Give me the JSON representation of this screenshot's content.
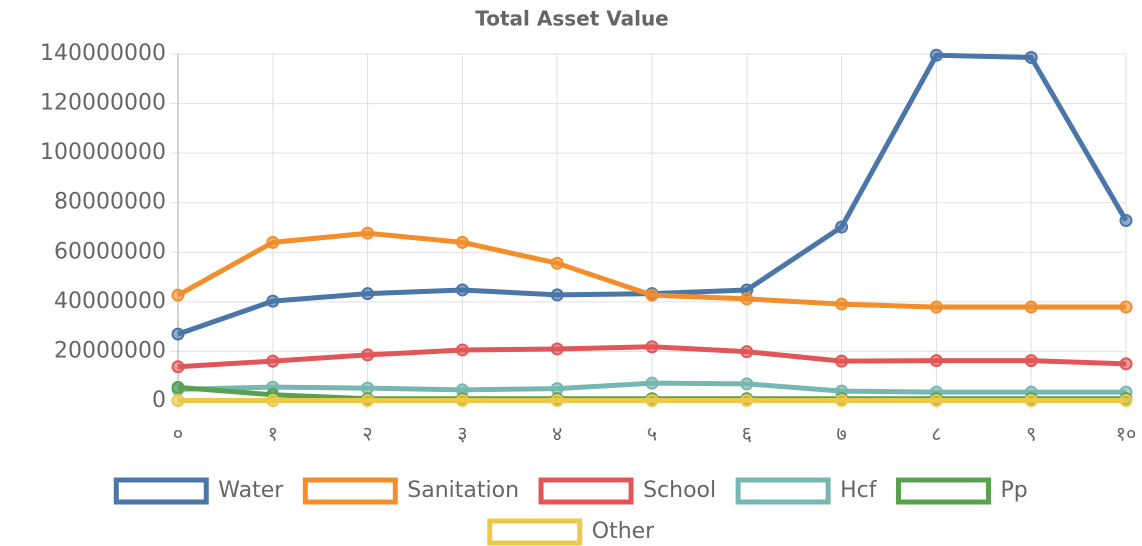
{
  "chart_data": {
    "type": "line",
    "title": "Total Asset Value",
    "categories": [
      "०",
      "१",
      "२",
      "३",
      "४",
      "५",
      "६",
      "७",
      "८",
      "९",
      "१०"
    ],
    "series": [
      {
        "name": "Water",
        "color": "#4a76a8",
        "values": [
          27000000,
          40300000,
          43300000,
          44800000,
          42800000,
          43300000,
          44800000,
          70200000,
          139500000,
          138600000,
          72800000
        ]
      },
      {
        "name": "Sanitation",
        "color": "#f28e2b",
        "values": [
          42700000,
          64000000,
          67700000,
          64000000,
          55600000,
          42700000,
          41200000,
          39100000,
          37900000,
          37900000,
          37900000
        ]
      },
      {
        "name": "School",
        "color": "#e15759",
        "values": [
          13800000,
          16100000,
          18600000,
          20600000,
          21000000,
          21900000,
          19900000,
          16100000,
          16300000,
          16300000,
          15000000
        ]
      },
      {
        "name": "Hcf",
        "color": "#76b7b2",
        "values": [
          4700000,
          5600000,
          5200000,
          4500000,
          5000000,
          7200000,
          6900000,
          4000000,
          3600000,
          3600000,
          3600000
        ]
      },
      {
        "name": "Pp",
        "color": "#59a14f",
        "values": [
          5500000,
          2500000,
          900000,
          900000,
          900000,
          900000,
          900000,
          900000,
          900000,
          900000,
          900000
        ]
      },
      {
        "name": "Other",
        "color": "#edc948",
        "values": [
          200000,
          200000,
          200000,
          200000,
          200000,
          200000,
          200000,
          200000,
          200000,
          200000,
          200000
        ]
      }
    ],
    "ylim": [
      0,
      140000000
    ],
    "yticks": [
      0,
      20000000,
      40000000,
      60000000,
      80000000,
      100000000,
      120000000,
      140000000
    ],
    "grid": true
  }
}
